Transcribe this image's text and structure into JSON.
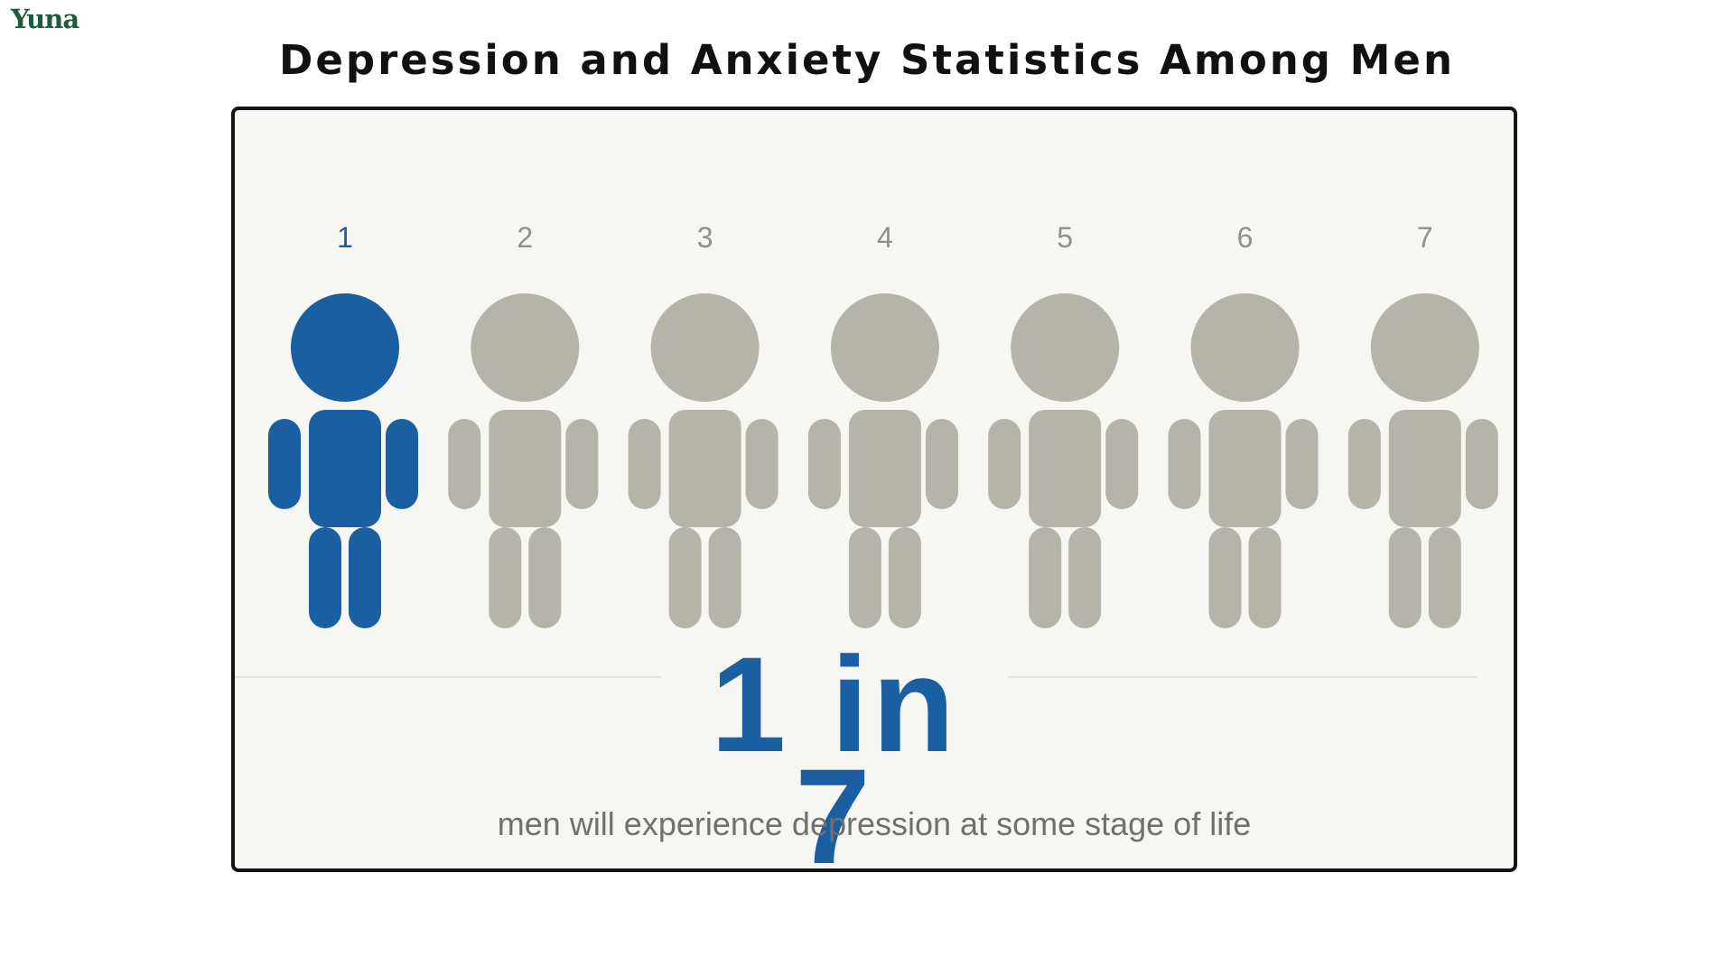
{
  "brand": {
    "logo_text": "Yuna"
  },
  "title": "Depression and Anxiety Statistics Among Men",
  "stat": {
    "big": "1 in 7",
    "caption": "men will experience depression at some stage of life"
  },
  "colors": {
    "highlight": "#1b5fa3",
    "inactive": "#b6b3aa",
    "number_inactive": "#8f8f8f",
    "card_background": "#f6f6f2"
  },
  "chart_data": {
    "type": "pictogram",
    "icon": "person-icon",
    "total": 7,
    "highlighted": 1,
    "labels": [
      "1",
      "2",
      "3",
      "4",
      "5",
      "6",
      "7"
    ],
    "highlighted_flags": [
      true,
      false,
      false,
      false,
      false,
      false,
      false
    ]
  }
}
